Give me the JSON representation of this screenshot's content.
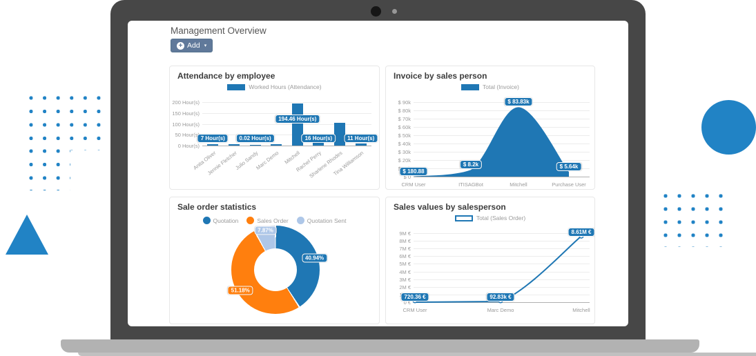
{
  "header": {
    "title": "Management Overview",
    "add_button": {
      "label": "Add",
      "plus_icon": "+",
      "caret_icon": "▾"
    }
  },
  "colors": {
    "chart_blue": "#1f77b4",
    "chart_orange": "#ff7f0e",
    "chart_light_blue": "#aec7e8",
    "decoration_blue": "#2183c5",
    "add_button": "#60799a",
    "laptop_frame": "#474747",
    "laptop_base": "#b2b2b2"
  },
  "chart_data": [
    {
      "type": "bar",
      "title": "Attendance by employee",
      "legend": [
        {
          "label": "Worked Hours (Attendance)",
          "color": "#1f77b4",
          "style": "filled"
        }
      ],
      "categories": [
        "Anita Oliver",
        "Jennie Fletcher",
        "Julio Sandy",
        "Marc Demo",
        "Mitchell",
        "Rachel Perry",
        "Sharlene Rhodes",
        "Tina Williamson"
      ],
      "values": [
        7,
        6,
        0.02,
        6,
        194.46,
        16,
        105,
        11
      ],
      "data_labels": [
        "7 Hour(s)",
        null,
        "0.02 Hour(s)",
        null,
        "194.46 Hour(s)",
        "16 Hour(s)",
        null,
        "11 Hour(s)"
      ],
      "ytick_labels": [
        "200 Hour(s)",
        "150 Hour(s)",
        "100 Hour(s)",
        "50 Hour(s)",
        "0 Hour(s)"
      ],
      "ylim": [
        0,
        200
      ],
      "bar_color": "#1f77b4",
      "grid": true
    },
    {
      "type": "area",
      "title": "Invoice by sales person",
      "legend": [
        {
          "label": "Total (Invoice)",
          "color": "#1f77b4",
          "style": "filled"
        }
      ],
      "categories": [
        "CRM User",
        "ITISAGBot",
        "Mitchell",
        "Purchase User"
      ],
      "values": [
        180.88,
        8200,
        83830,
        5640
      ],
      "data_labels": [
        "$ 180.88",
        "$ 8.2k",
        "$ 83.83k",
        "$ 5.64k"
      ],
      "ytick_labels": [
        "$ 90k",
        "$ 80k",
        "$ 70k",
        "$ 60k",
        "$ 50k",
        "$ 40k",
        "$ 30k",
        "$ 20k",
        "$ 10k",
        "$ 0"
      ],
      "ylim": [
        0,
        90000
      ],
      "color": "#1f77b4",
      "grid": true
    },
    {
      "type": "pie",
      "title": "Sale order statistics",
      "legend": [
        {
          "label": "Quotation",
          "color": "#1f77b4",
          "style": "dot"
        },
        {
          "label": "Sales Order",
          "color": "#ff7f0e",
          "style": "dot"
        },
        {
          "label": "Quotation Sent",
          "color": "#aec7e8",
          "style": "dot"
        }
      ],
      "slices": [
        {
          "label": "Quotation",
          "value": 40.94,
          "display": "40.94%",
          "color": "#1f77b4"
        },
        {
          "label": "Sales Order",
          "value": 51.18,
          "display": "51.18%",
          "color": "#ff7f0e"
        },
        {
          "label": "Quotation Sent",
          "value": 7.87,
          "display": "7.87%",
          "color": "#aec7e8"
        }
      ]
    },
    {
      "type": "line",
      "title": "Sales values by salesperson",
      "legend": [
        {
          "label": "Total (Sales Order)",
          "color": "#1f77b4",
          "style": "outlined"
        }
      ],
      "categories": [
        "CRM User",
        "Marc Demo",
        "Mitchell"
      ],
      "values": [
        720.36,
        92830,
        8610000
      ],
      "data_labels": [
        "720.36 €",
        "92.83k €",
        "8.61M €"
      ],
      "ytick_labels": [
        "9M €",
        "8M €",
        "7M €",
        "6M €",
        "5M €",
        "4M €",
        "3M €",
        "2M €",
        "1M €",
        "0 €"
      ],
      "ylim": [
        0,
        9000000
      ],
      "color": "#1f77b4",
      "grid": true
    }
  ]
}
